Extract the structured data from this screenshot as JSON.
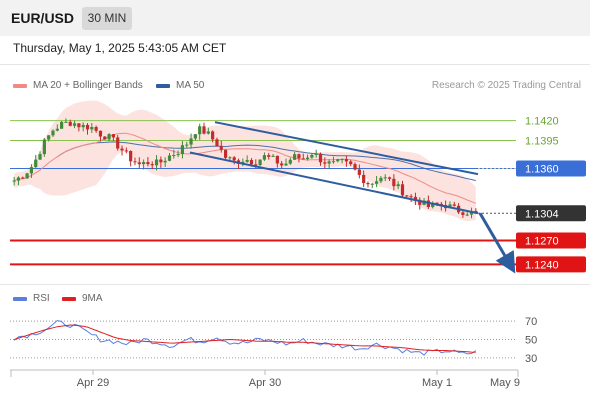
{
  "header": {
    "symbol": "EUR/USD",
    "timeframe": "30 MIN"
  },
  "datetime": "Thursday, May 1, 2025 5:43:05 AM CET",
  "legend": {
    "ma20": {
      "label": "MA 20 + Bollinger Bands",
      "color": "#f08a84"
    },
    "ma50": {
      "label": "MA 50",
      "color": "#2e5d9f"
    }
  },
  "credit": "Research © 2025 Trading Central",
  "rsi_legend": {
    "rsi": {
      "label": "RSI",
      "color": "#5b7fe0"
    },
    "ma9": {
      "label": "9MA",
      "color": "#e02020"
    }
  },
  "chart_data": [
    {
      "type": "candlestick",
      "ylim": [
        1.1218,
        1.1452
      ],
      "x_ticks": [
        "Apr 29",
        "Apr 30",
        "May 1",
        "May 9"
      ],
      "levels": [
        {
          "label": "1.1420",
          "value": 1.142,
          "color": "#8cc24f",
          "style": "target"
        },
        {
          "label": "1.1395",
          "value": 1.1395,
          "color": "#8cc24f",
          "style": "target"
        },
        {
          "label": "1.1360",
          "value": 1.136,
          "color": "#3a6fd8",
          "style": "pivot"
        },
        {
          "label": "1.1304",
          "value": 1.1304,
          "color": "#333333",
          "style": "last"
        },
        {
          "label": "1.1270",
          "value": 1.127,
          "color": "#e01414",
          "style": "support"
        },
        {
          "label": "1.1240",
          "value": 1.124,
          "color": "#e01414",
          "style": "support"
        }
      ],
      "last_price": 1.1304,
      "close_path": [
        1.1345,
        1.1352,
        1.1365,
        1.139,
        1.1408,
        1.1416,
        1.1418,
        1.1413,
        1.1412,
        1.1403,
        1.1398,
        1.1386,
        1.1373,
        1.1365,
        1.1368,
        1.1366,
        1.1375,
        1.1381,
        1.1392,
        1.141,
        1.1405,
        1.1392,
        1.1374,
        1.1368,
        1.1372,
        1.1368,
        1.1375,
        1.1371,
        1.1363,
        1.1375,
        1.1372,
        1.138,
        1.137,
        1.1365,
        1.1368,
        1.1363,
        1.135,
        1.134,
        1.135,
        1.1345,
        1.1335,
        1.1325,
        1.132,
        1.1312,
        1.1315,
        1.1314,
        1.1308,
        1.1306,
        1.1304
      ],
      "channel": {
        "upper": [
          1.1418,
          1.1353
        ],
        "lower": [
          1.138,
          1.1304
        ]
      }
    },
    {
      "type": "line",
      "title": "RSI",
      "ylim": [
        20,
        80
      ],
      "y_ticks": [
        70,
        50,
        30
      ],
      "rsi_path": [
        52,
        55,
        60,
        68,
        66,
        58,
        50,
        48,
        45,
        50,
        47,
        43,
        50,
        48,
        53,
        47,
        46,
        50,
        48,
        45,
        49,
        46,
        44,
        43,
        40,
        45,
        42,
        38,
        35,
        36,
        38,
        34,
        36
      ],
      "ma9_path": [
        50,
        55,
        60,
        64,
        66,
        64,
        58,
        52,
        49,
        48,
        47,
        46,
        47,
        48,
        49,
        50,
        49,
        48,
        48,
        47,
        47,
        46,
        45,
        44,
        43,
        43,
        42,
        41,
        39,
        38,
        38,
        37,
        36
      ]
    }
  ]
}
